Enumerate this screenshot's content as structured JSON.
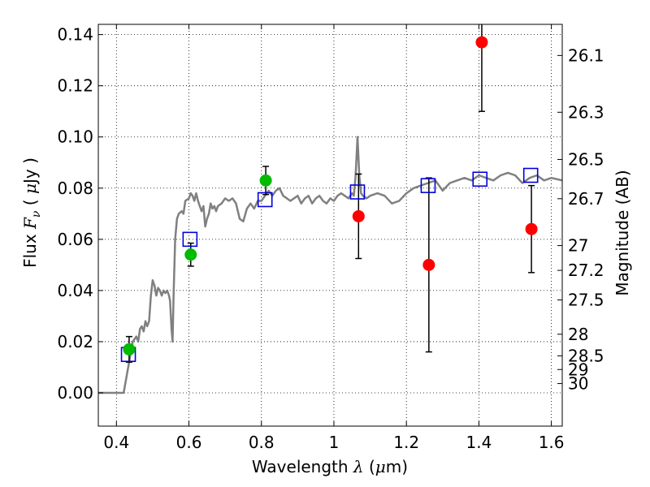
{
  "chart_data": {
    "type": "scatter",
    "xlabel": "Wavelength  λ (μm)",
    "ylabel": "Flux  F_ν  ( μJy )",
    "ylabel_right": "Magnitude (AB)",
    "xlim": [
      0.35,
      1.63
    ],
    "ylim": [
      -0.013,
      0.144
    ],
    "grid": true,
    "x_ticks": [
      {
        "v": 0.4,
        "label": "0.4"
      },
      {
        "v": 0.6,
        "label": "0.6"
      },
      {
        "v": 0.8,
        "label": "0.8"
      },
      {
        "v": 1.0,
        "label": "1"
      },
      {
        "v": 1.2,
        "label": "1.2"
      },
      {
        "v": 1.4,
        "label": "1.4"
      },
      {
        "v": 1.6,
        "label": "1.6"
      }
    ],
    "y_ticks": [
      {
        "v": 0.0,
        "label": "0.00"
      },
      {
        "v": 0.02,
        "label": "0.02"
      },
      {
        "v": 0.04,
        "label": "0.04"
      },
      {
        "v": 0.06,
        "label": "0.06"
      },
      {
        "v": 0.08,
        "label": "0.08"
      },
      {
        "v": 0.1,
        "label": "0.10"
      },
      {
        "v": 0.12,
        "label": "0.12"
      },
      {
        "v": 0.14,
        "label": "0.14"
      }
    ],
    "mag_ticks": [
      {
        "v": 26.1,
        "label": "26.1"
      },
      {
        "v": 26.3,
        "label": "26.3"
      },
      {
        "v": 26.5,
        "label": "26.5"
      },
      {
        "v": 26.7,
        "label": "26.7"
      },
      {
        "v": 27.0,
        "label": "27"
      },
      {
        "v": 27.2,
        "label": "27.2"
      },
      {
        "v": 27.5,
        "label": "27.5"
      },
      {
        "v": 28.0,
        "label": "28"
      },
      {
        "v": 28.5,
        "label": "28.5"
      },
      {
        "v": 29.0,
        "label": "29"
      },
      {
        "v": 30.0,
        "label": "30"
      }
    ],
    "series": [
      {
        "marker": "line",
        "color": "#808080",
        "points": [
          [
            0.35,
            0.0
          ],
          [
            0.42,
            0.0
          ],
          [
            0.435,
            0.012
          ],
          [
            0.445,
            0.02
          ],
          [
            0.455,
            0.022
          ],
          [
            0.46,
            0.02
          ],
          [
            0.465,
            0.025
          ],
          [
            0.47,
            0.026
          ],
          [
            0.475,
            0.024
          ],
          [
            0.48,
            0.028
          ],
          [
            0.485,
            0.026
          ],
          [
            0.49,
            0.028
          ],
          [
            0.495,
            0.038
          ],
          [
            0.5,
            0.044
          ],
          [
            0.505,
            0.042
          ],
          [
            0.51,
            0.038
          ],
          [
            0.515,
            0.041
          ],
          [
            0.52,
            0.04
          ],
          [
            0.525,
            0.038
          ],
          [
            0.53,
            0.04
          ],
          [
            0.535,
            0.039
          ],
          [
            0.54,
            0.04
          ],
          [
            0.545,
            0.038
          ],
          [
            0.548,
            0.036
          ],
          [
            0.552,
            0.025
          ],
          [
            0.555,
            0.02
          ],
          [
            0.558,
            0.04
          ],
          [
            0.562,
            0.06
          ],
          [
            0.567,
            0.068
          ],
          [
            0.572,
            0.07
          ],
          [
            0.58,
            0.071
          ],
          [
            0.585,
            0.07
          ],
          [
            0.59,
            0.075
          ],
          [
            0.6,
            0.076
          ],
          [
            0.605,
            0.078
          ],
          [
            0.61,
            0.077
          ],
          [
            0.615,
            0.075
          ],
          [
            0.62,
            0.078
          ],
          [
            0.625,
            0.075
          ],
          [
            0.63,
            0.073
          ],
          [
            0.635,
            0.071
          ],
          [
            0.64,
            0.073
          ],
          [
            0.645,
            0.065
          ],
          [
            0.65,
            0.068
          ],
          [
            0.655,
            0.07
          ],
          [
            0.66,
            0.074
          ],
          [
            0.665,
            0.072
          ],
          [
            0.67,
            0.073
          ],
          [
            0.675,
            0.071
          ],
          [
            0.68,
            0.073
          ],
          [
            0.69,
            0.074
          ],
          [
            0.7,
            0.076
          ],
          [
            0.71,
            0.075
          ],
          [
            0.72,
            0.076
          ],
          [
            0.73,
            0.074
          ],
          [
            0.74,
            0.068
          ],
          [
            0.75,
            0.067
          ],
          [
            0.76,
            0.072
          ],
          [
            0.77,
            0.074
          ],
          [
            0.78,
            0.072
          ],
          [
            0.79,
            0.075
          ],
          [
            0.8,
            0.075
          ],
          [
            0.81,
            0.077
          ],
          [
            0.82,
            0.079
          ],
          [
            0.83,
            0.077
          ],
          [
            0.84,
            0.079
          ],
          [
            0.85,
            0.08
          ],
          [
            0.86,
            0.077
          ],
          [
            0.87,
            0.076
          ],
          [
            0.88,
            0.075
          ],
          [
            0.9,
            0.077
          ],
          [
            0.91,
            0.074
          ],
          [
            0.92,
            0.076
          ],
          [
            0.93,
            0.077
          ],
          [
            0.94,
            0.074
          ],
          [
            0.95,
            0.076
          ],
          [
            0.96,
            0.077
          ],
          [
            0.97,
            0.075
          ],
          [
            0.98,
            0.074
          ],
          [
            0.99,
            0.076
          ],
          [
            1.0,
            0.075
          ],
          [
            1.01,
            0.077
          ],
          [
            1.02,
            0.078
          ],
          [
            1.03,
            0.077
          ],
          [
            1.04,
            0.076
          ],
          [
            1.05,
            0.078
          ],
          [
            1.055,
            0.077
          ],
          [
            1.06,
            0.085
          ],
          [
            1.065,
            0.1
          ],
          [
            1.07,
            0.085
          ],
          [
            1.075,
            0.078
          ],
          [
            1.08,
            0.077
          ],
          [
            1.09,
            0.076
          ],
          [
            1.1,
            0.077
          ],
          [
            1.12,
            0.078
          ],
          [
            1.14,
            0.077
          ],
          [
            1.16,
            0.074
          ],
          [
            1.18,
            0.075
          ],
          [
            1.2,
            0.078
          ],
          [
            1.22,
            0.08
          ],
          [
            1.24,
            0.081
          ],
          [
            1.26,
            0.082
          ],
          [
            1.28,
            0.083
          ],
          [
            1.3,
            0.079
          ],
          [
            1.32,
            0.082
          ],
          [
            1.34,
            0.083
          ],
          [
            1.36,
            0.084
          ],
          [
            1.38,
            0.083
          ],
          [
            1.4,
            0.085
          ],
          [
            1.42,
            0.084
          ],
          [
            1.44,
            0.083
          ],
          [
            1.46,
            0.085
          ],
          [
            1.48,
            0.086
          ],
          [
            1.5,
            0.085
          ],
          [
            1.52,
            0.082
          ],
          [
            1.54,
            0.084
          ],
          [
            1.56,
            0.085
          ],
          [
            1.58,
            0.083
          ],
          [
            1.6,
            0.084
          ],
          [
            1.63,
            0.083
          ]
        ]
      },
      {
        "marker": "circle",
        "color": "#00bb00",
        "points": [
          {
            "x": 0.435,
            "y": 0.017,
            "err": 0.005
          },
          {
            "x": 0.605,
            "y": 0.054,
            "err": 0.0045
          },
          {
            "x": 0.812,
            "y": 0.083,
            "err": 0.0055
          }
        ]
      },
      {
        "marker": "circle",
        "color": "#ff0000",
        "points": [
          {
            "x": 1.068,
            "y": 0.069,
            "err": 0.0165
          },
          {
            "x": 1.262,
            "y": 0.05,
            "err": 0.034
          },
          {
            "x": 1.408,
            "y": 0.137,
            "err": 0.027
          },
          {
            "x": 1.545,
            "y": 0.064,
            "err": 0.017
          }
        ]
      },
      {
        "marker": "square",
        "color": "#0000dd",
        "points": [
          {
            "x": 0.433,
            "y": 0.015
          },
          {
            "x": 0.603,
            "y": 0.06
          },
          {
            "x": 0.81,
            "y": 0.0755
          },
          {
            "x": 1.065,
            "y": 0.0785
          },
          {
            "x": 1.26,
            "y": 0.081
          },
          {
            "x": 1.403,
            "y": 0.0835
          },
          {
            "x": 1.543,
            "y": 0.085
          }
        ]
      }
    ]
  }
}
